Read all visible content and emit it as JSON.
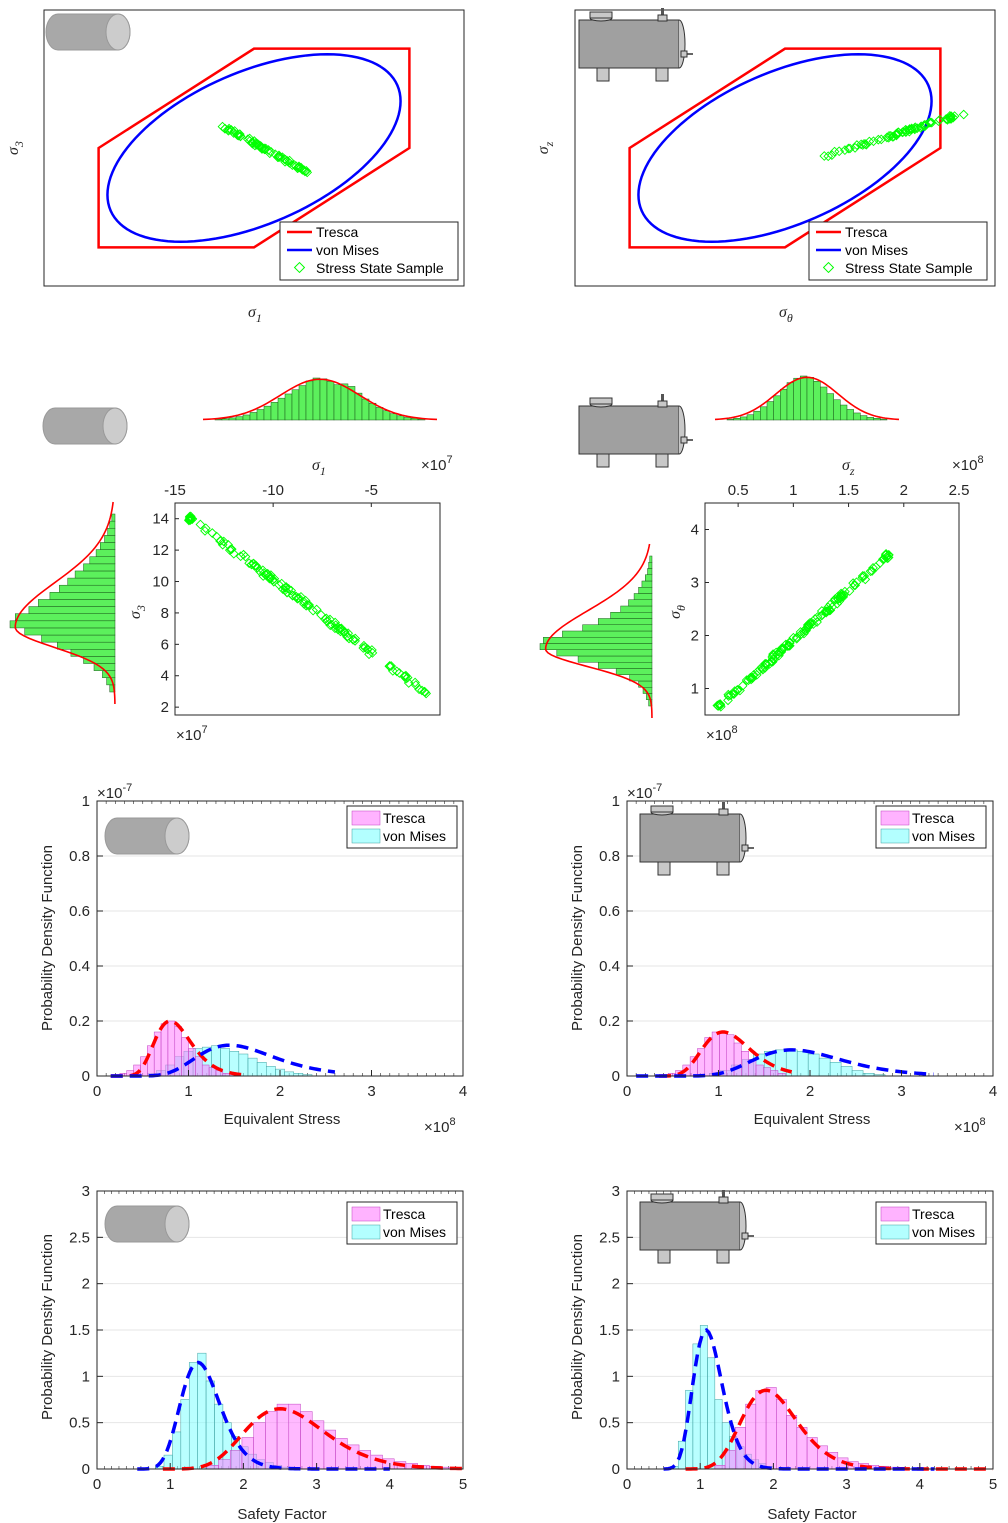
{
  "colors": {
    "tresca": "#ff0000",
    "von_mises": "#0000ff",
    "sample": "#00ff00",
    "hist_green": "#5cf05c",
    "tresca_bar": "#ff80ff",
    "vm_bar": "#80ffff",
    "axis": "#262626"
  },
  "icons": {
    "left": "rod-cylinder-icon",
    "right": "pressure-tank-icon"
  },
  "chart_data": [
    {
      "id": "yield-left",
      "type": "scatter",
      "xlabel": "σ1",
      "ylabel": "σ3",
      "ticks_visible": false,
      "legend_position": "bottom-right",
      "legend": [
        "Tresca",
        "von Mises",
        "Stress State Sample"
      ],
      "sample_trend": {
        "start": [
          -0.2,
          0.22
        ],
        "end": [
          0.35,
          -0.25
        ]
      }
    },
    {
      "id": "yield-right",
      "type": "scatter",
      "xlabel": "σθ",
      "ylabel": "σz",
      "ticks_visible": false,
      "legend_position": "bottom-right",
      "legend": [
        "Tresca",
        "von Mises",
        "Stress State Sample"
      ],
      "sample_trend": {
        "start": [
          0.22,
          -0.1
        ],
        "end": [
          1.15,
          0.35
        ]
      }
    },
    {
      "id": "joint-left",
      "type": "scatter",
      "top_hist_label": "σ1",
      "top_exponent": "×10",
      "top_exponent_power": "7",
      "xlim": [
        -15,
        -1.5
      ],
      "xticks": [
        "-15",
        "-10",
        "-5"
      ],
      "xtick_values": [
        -15,
        -10,
        -5
      ],
      "ylabel": "σ3",
      "ylim": [
        1.5,
        15
      ],
      "yticks": [
        "2",
        "4",
        "6",
        "8",
        "10",
        "12",
        "14"
      ],
      "ytick_values": [
        2,
        4,
        6,
        8,
        10,
        12,
        14
      ],
      "y_exponent": "×10",
      "y_exponent_power": "7",
      "line": {
        "x_start": -14.2,
        "y_start": 14.0,
        "x_end": -2.3,
        "y_end": 3.0
      },
      "top_hist": [
        0.02,
        0.03,
        0.05,
        0.08,
        0.12,
        0.18,
        0.25,
        0.33,
        0.42,
        0.52,
        0.62,
        0.72,
        0.82,
        0.93,
        1.0,
        0.98,
        0.92,
        0.84,
        0.86,
        0.8,
        0.64,
        0.5,
        0.4,
        0.3,
        0.22,
        0.15,
        0.1,
        0.06,
        0.04,
        0.02
      ],
      "side_hist": [
        0.05,
        0.08,
        0.12,
        0.2,
        0.3,
        0.42,
        0.55,
        0.7,
        0.86,
        1.0,
        0.95,
        0.82,
        0.73,
        0.62,
        0.53,
        0.45,
        0.38,
        0.3,
        0.24,
        0.18,
        0.14,
        0.1,
        0.07,
        0.05,
        0.03
      ]
    },
    {
      "id": "joint-right",
      "type": "scatter",
      "top_hist_label": "σz",
      "top_exponent": "×10",
      "top_exponent_power": "8",
      "xlim": [
        0.2,
        2.5
      ],
      "xticks": [
        "0.5",
        "1",
        "1.5",
        "2",
        "2.5"
      ],
      "xtick_values": [
        0.5,
        1,
        1.5,
        2,
        2.5
      ],
      "ylabel": "σθ",
      "ylim": [
        0.5,
        4.5
      ],
      "yticks": [
        "1",
        "2",
        "3",
        "4"
      ],
      "ytick_values": [
        1,
        2,
        3,
        4
      ],
      "y_exponent": "×10",
      "y_exponent_power": "8",
      "line": {
        "x_start": 0.33,
        "y_start": 0.68,
        "x_end": 1.85,
        "y_end": 3.5
      },
      "top_hist": [
        0.02,
        0.04,
        0.07,
        0.12,
        0.2,
        0.3,
        0.42,
        0.55,
        0.7,
        0.85,
        0.95,
        1.0,
        0.97,
        0.88,
        0.75,
        0.6,
        0.46,
        0.34,
        0.24,
        0.16,
        0.1,
        0.06,
        0.04,
        0.02
      ],
      "side_hist": [
        0.03,
        0.05,
        0.08,
        0.12,
        0.2,
        0.32,
        0.48,
        0.66,
        0.85,
        1.0,
        0.97,
        0.8,
        0.62,
        0.48,
        0.37,
        0.28,
        0.21,
        0.16,
        0.12,
        0.09,
        0.06,
        0.04,
        0.03,
        0.02
      ]
    },
    {
      "id": "pdf-stress-left",
      "type": "bar",
      "xlabel": "Equivalent Stress",
      "ylabel": "Probability Density Function",
      "xlim": [
        0,
        4
      ],
      "ylim": [
        0,
        1
      ],
      "xticks": [
        "0",
        "1",
        "2",
        "3",
        "4"
      ],
      "xtick_values": [
        0,
        1,
        2,
        3,
        4
      ],
      "yticks": [
        "0",
        "0.2",
        "0.4",
        "0.6",
        "0.8",
        "1"
      ],
      "ytick_values": [
        0,
        0.2,
        0.4,
        0.6,
        0.8,
        1
      ],
      "x_exponent": "×10",
      "x_exponent_power": "8",
      "y_exponent": "×10",
      "y_exponent_power": "-7",
      "legend_position": "top-right",
      "series": [
        {
          "name": "Tresca",
          "bin_start": 0.25,
          "bin_width": 0.075,
          "values": [
            0.01,
            0.02,
            0.04,
            0.07,
            0.11,
            0.16,
            0.19,
            0.2,
            0.18,
            0.14,
            0.1,
            0.07,
            0.04,
            0.03,
            0.02,
            0.01,
            0.01
          ],
          "fit": {
            "mean": 0.8,
            "sd": 0.2,
            "peak": 0.2,
            "from": 0.15,
            "to": 1.6
          }
        },
        {
          "name": "von Mises",
          "bin_start": 0.55,
          "bin_width": 0.1,
          "values": [
            0.01,
            0.02,
            0.04,
            0.07,
            0.09,
            0.1,
            0.105,
            0.11,
            0.1,
            0.09,
            0.08,
            0.065,
            0.05,
            0.035,
            0.025,
            0.015,
            0.01,
            0.005
          ],
          "fit": {
            "mean": 1.45,
            "sd": 0.42,
            "peak": 0.112,
            "from": 0.15,
            "to": 2.6
          }
        }
      ]
    },
    {
      "id": "pdf-stress-right",
      "type": "bar",
      "xlabel": "Equivalent Stress",
      "ylabel": "Probability Density Function",
      "xlim": [
        0,
        4
      ],
      "ylim": [
        0,
        1
      ],
      "xticks": [
        "0",
        "1",
        "2",
        "3",
        "4"
      ],
      "xtick_values": [
        0,
        1,
        2,
        3,
        4
      ],
      "yticks": [
        "0",
        "0.2",
        "0.4",
        "0.6",
        "0.8",
        "1"
      ],
      "ytick_values": [
        0,
        0.2,
        0.4,
        0.6,
        0.8,
        1
      ],
      "x_exponent": "×10",
      "x_exponent_power": "8",
      "y_exponent": "×10",
      "y_exponent_power": "-7",
      "legend_position": "top-right",
      "series": [
        {
          "name": "Tresca",
          "bin_start": 0.45,
          "bin_width": 0.08,
          "values": [
            0.01,
            0.02,
            0.04,
            0.07,
            0.1,
            0.14,
            0.16,
            0.16,
            0.15,
            0.12,
            0.09,
            0.06,
            0.04,
            0.03,
            0.02,
            0.01
          ],
          "fit": {
            "mean": 1.05,
            "sd": 0.26,
            "peak": 0.16,
            "from": 0.35,
            "to": 1.8
          }
        },
        {
          "name": "von Mises",
          "bin_start": 0.9,
          "bin_width": 0.12,
          "values": [
            0.01,
            0.02,
            0.04,
            0.06,
            0.08,
            0.09,
            0.095,
            0.095,
            0.09,
            0.08,
            0.065,
            0.05,
            0.035,
            0.02,
            0.01,
            0.005
          ],
          "fit": {
            "mean": 1.8,
            "sd": 0.48,
            "peak": 0.095,
            "from": 0.1,
            "to": 3.35
          }
        }
      ]
    },
    {
      "id": "pdf-safety-left",
      "type": "bar",
      "xlabel": "Safety Factor",
      "ylabel": "Probability Density Function",
      "xlim": [
        0,
        5
      ],
      "ylim": [
        0,
        3
      ],
      "xticks": [
        "0",
        "1",
        "2",
        "3",
        "4",
        "5"
      ],
      "xtick_values": [
        0,
        1,
        2,
        3,
        4,
        5
      ],
      "yticks": [
        "0",
        "0.5",
        "1",
        "1.5",
        "2",
        "2.5",
        "3"
      ],
      "ytick_values": [
        0,
        0.5,
        1,
        1.5,
        2,
        2.5,
        3
      ],
      "legend_position": "top-right",
      "series": [
        {
          "name": "Tresca",
          "bin_start": 1.5,
          "bin_width": 0.16,
          "values": [
            0.04,
            0.1,
            0.2,
            0.34,
            0.5,
            0.62,
            0.7,
            0.7,
            0.62,
            0.52,
            0.42,
            0.33,
            0.26,
            0.2,
            0.15,
            0.11,
            0.08,
            0.06,
            0.04,
            0.03,
            0.02
          ],
          "fit": {
            "mean": 2.5,
            "sd": 0.55,
            "peak": 0.65,
            "from": 0.9,
            "to": 5.0
          }
        },
        {
          "name": "von Mises",
          "bin_start": 0.8,
          "bin_width": 0.115,
          "values": [
            0.03,
            0.15,
            0.4,
            0.75,
            1.15,
            1.25,
            0.95,
            0.7,
            0.5,
            0.35,
            0.24,
            0.16,
            0.1,
            0.07,
            0.04,
            0.02
          ],
          "fit": {
            "mean": 1.38,
            "sd": 0.27,
            "peak": 1.15,
            "from": 0.55,
            "to": 4.0
          }
        }
      ]
    },
    {
      "id": "pdf-safety-right",
      "type": "bar",
      "xlabel": "Safety Factor",
      "ylabel": "Probability Density Function",
      "xlim": [
        0,
        5
      ],
      "ylim": [
        0,
        3
      ],
      "xticks": [
        "0",
        "1",
        "2",
        "3",
        "4",
        "5"
      ],
      "xtick_values": [
        0,
        1,
        2,
        3,
        4,
        5
      ],
      "yticks": [
        "0",
        "0.5",
        "1",
        "1.5",
        "2",
        "2.5",
        "3"
      ],
      "ytick_values": [
        0,
        0.5,
        1,
        1.5,
        2,
        2.5,
        3
      ],
      "legend_position": "top-right",
      "series": [
        {
          "name": "Tresca",
          "bin_start": 1.2,
          "bin_width": 0.14,
          "values": [
            0.04,
            0.2,
            0.45,
            0.7,
            0.85,
            0.88,
            0.75,
            0.58,
            0.45,
            0.34,
            0.25,
            0.18,
            0.12,
            0.08,
            0.06,
            0.04,
            0.03,
            0.02
          ],
          "fit": {
            "mean": 1.9,
            "sd": 0.38,
            "peak": 0.85,
            "from": 0.8,
            "to": 5.0
          }
        },
        {
          "name": "von Mises",
          "bin_start": 0.6,
          "bin_width": 0.1,
          "values": [
            0.03,
            0.3,
            0.85,
            1.35,
            1.55,
            1.2,
            0.75,
            0.5,
            0.35,
            0.24,
            0.16,
            0.1,
            0.06,
            0.03
          ],
          "fit": {
            "mean": 1.08,
            "sd": 0.2,
            "peak": 1.5,
            "from": 0.5,
            "to": 4.2
          }
        }
      ]
    }
  ]
}
